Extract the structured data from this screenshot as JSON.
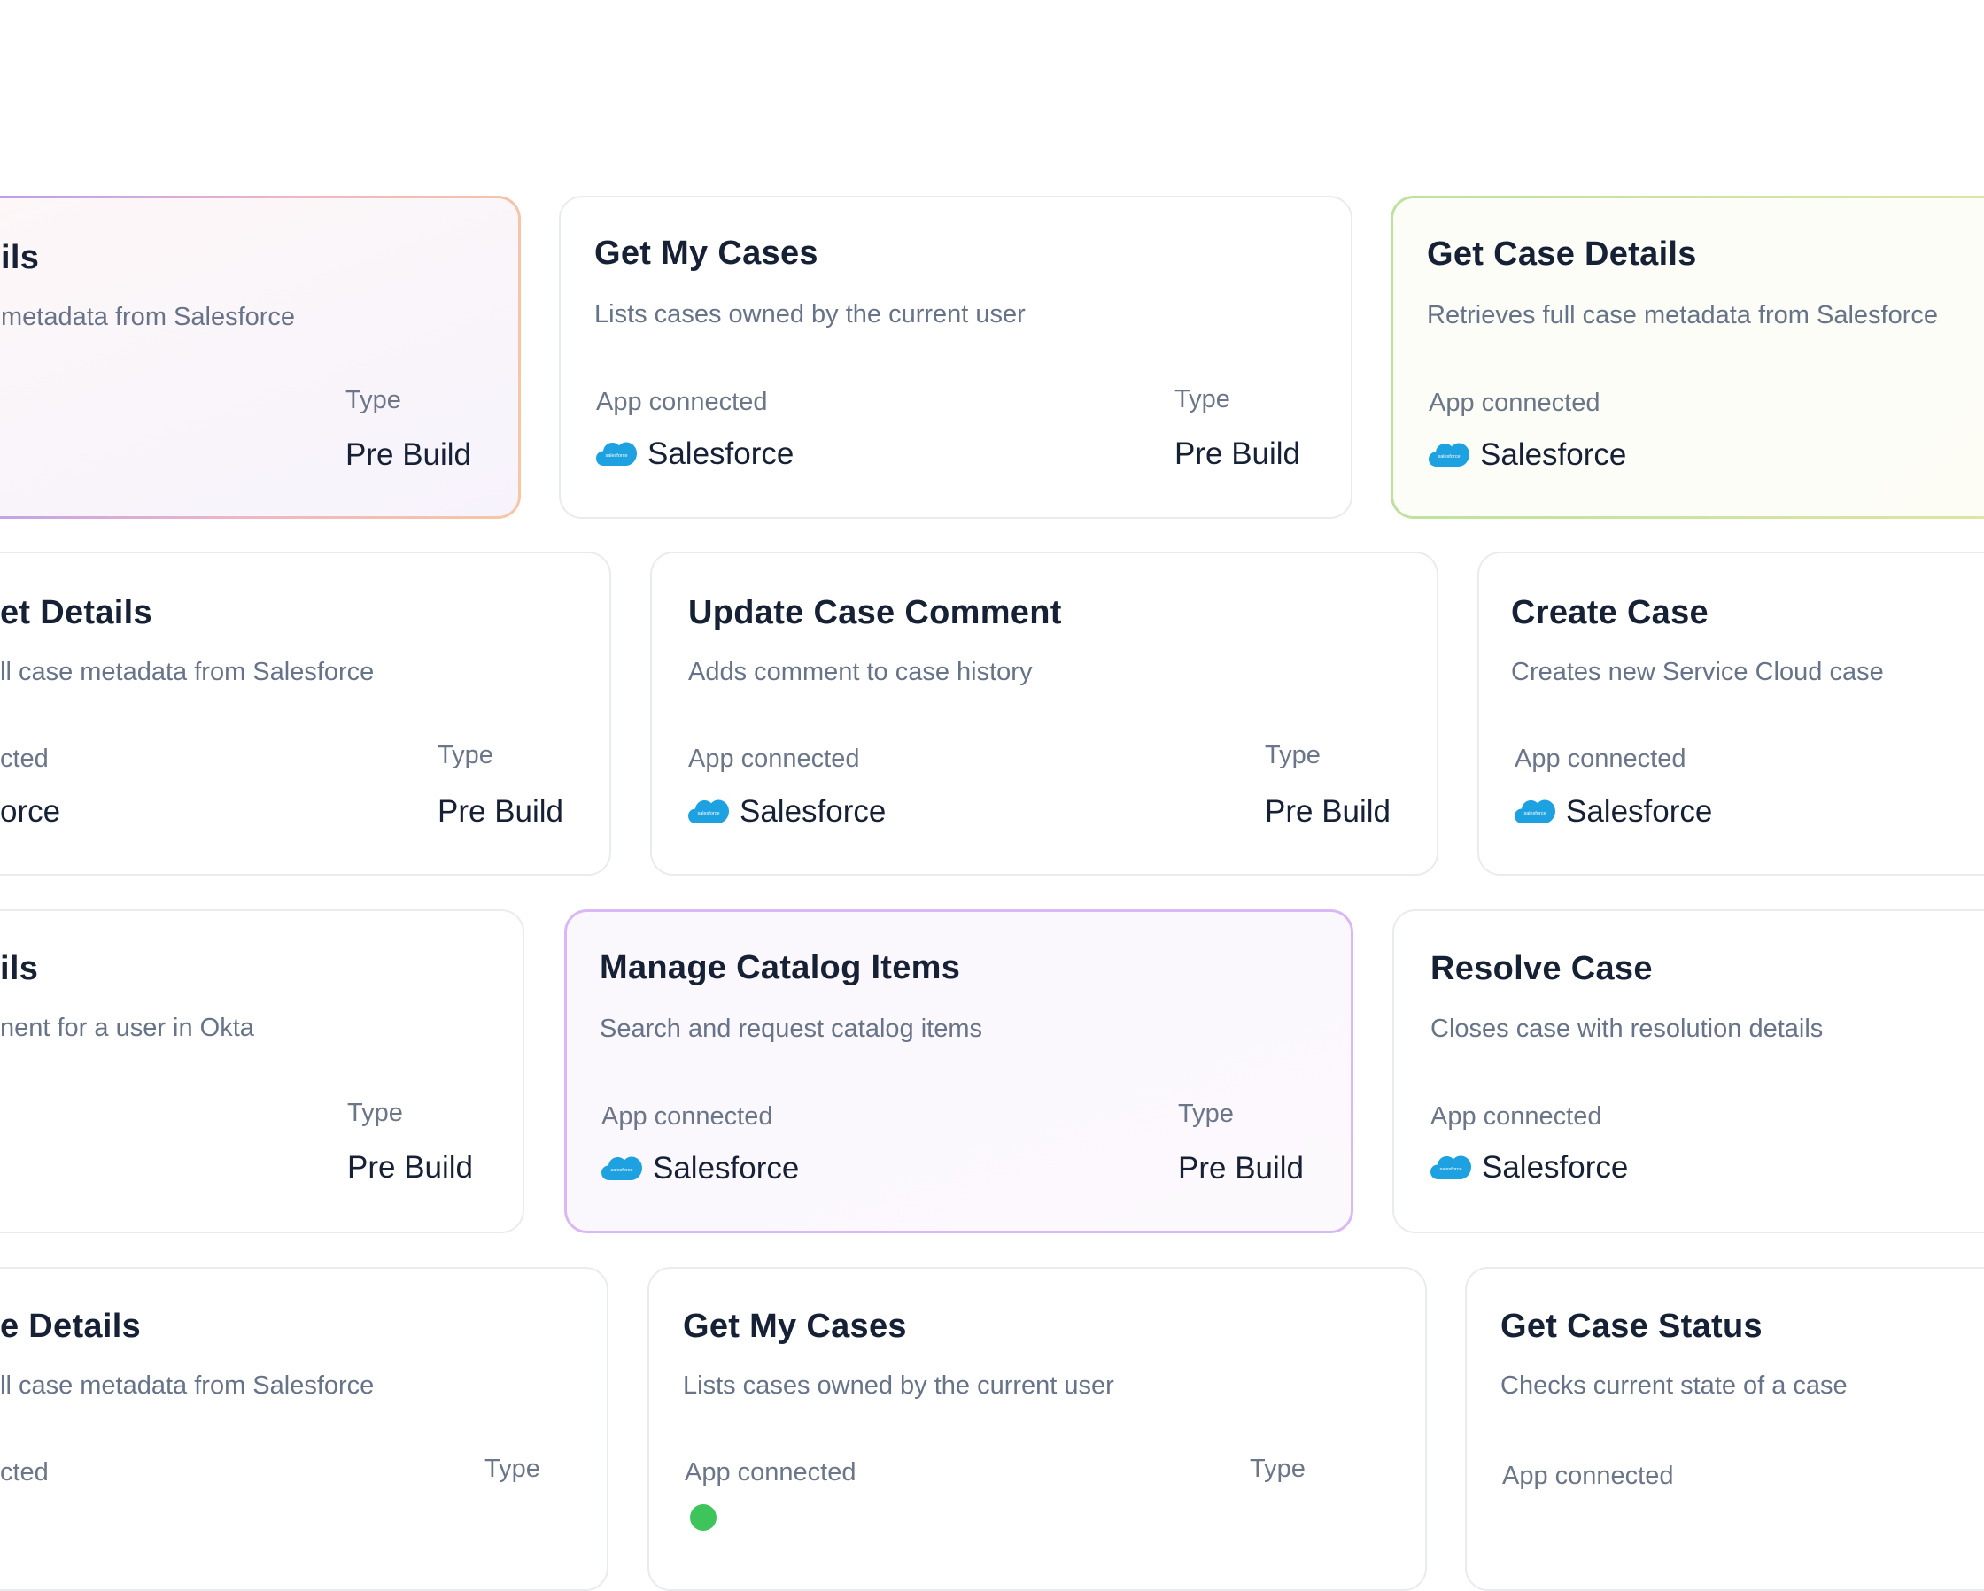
{
  "labels": {
    "app_connected": "App connected",
    "type": "Type",
    "type_value": "Pre Build",
    "app_name": "Salesforce",
    "app_icon": "salesforce-cloud-icon",
    "app_icon_text": "salesforce"
  },
  "colors": {
    "salesforce_blue": "#1EA1E0",
    "title": "#172136",
    "muted": "#677388",
    "card_border": "#E9EBEF",
    "highlight_purple": "#D9B9F5",
    "highlight_green": "#C5E2A1",
    "highlight_peach": "#F8C7A1"
  },
  "cards": [
    {
      "title": "ils",
      "description": "metadata from Salesforce",
      "app_connected_label": "",
      "app_name": "",
      "type_label": "Type",
      "type_value": "Pre Build"
    },
    {
      "title": "Get My Cases",
      "description": "Lists cases owned by the current user",
      "app_connected_label": "App connected",
      "app_name": "Salesforce",
      "type_label": "Type",
      "type_value": "Pre Build"
    },
    {
      "title": "Get Case Details",
      "description": "Retrieves full case metadata from Salesforce",
      "app_connected_label": "App connected",
      "app_name": "Salesforce",
      "type_label": "",
      "type_value": ""
    },
    {
      "title": "et Details",
      "description": "ll case metadata from Salesforce",
      "app_connected_label": "cted",
      "app_name": "orce",
      "type_label": "Type",
      "type_value": "Pre Build"
    },
    {
      "title": "Update Case Comment",
      "description": "Adds comment to case history",
      "app_connected_label": "App connected",
      "app_name": "Salesforce",
      "type_label": "Type",
      "type_value": "Pre Build"
    },
    {
      "title": "Create Case",
      "description": "Creates new Service Cloud case",
      "app_connected_label": "App connected",
      "app_name": "Salesforce",
      "type_label": "",
      "type_value": ""
    },
    {
      "title": "ils",
      "description": "nent for a user in Okta",
      "app_connected_label": "",
      "app_name": "",
      "type_label": "Type",
      "type_value": "Pre Build"
    },
    {
      "title": "Manage Catalog Items",
      "description": "Search and request catalog items",
      "app_connected_label": "App connected",
      "app_name": "Salesforce",
      "type_label": "Type",
      "type_value": "Pre Build"
    },
    {
      "title": "Resolve Case",
      "description": "Closes case with resolution details",
      "app_connected_label": "App connected",
      "app_name": "Salesforce",
      "type_label": "",
      "type_value": ""
    },
    {
      "title": "e Details",
      "description": "ll case metadata from Salesforce",
      "app_connected_label": "cted",
      "app_name": "",
      "type_label": "Type",
      "type_value": ""
    },
    {
      "title": "Get My Cases",
      "description": "Lists cases owned by the current user",
      "app_connected_label": "App connected",
      "app_name": "",
      "type_label": "Type",
      "type_value": ""
    },
    {
      "title": "Get Case Status",
      "description": "Checks current state of a case",
      "app_connected_label": "App connected",
      "app_name": "",
      "type_label": "",
      "type_value": ""
    }
  ]
}
